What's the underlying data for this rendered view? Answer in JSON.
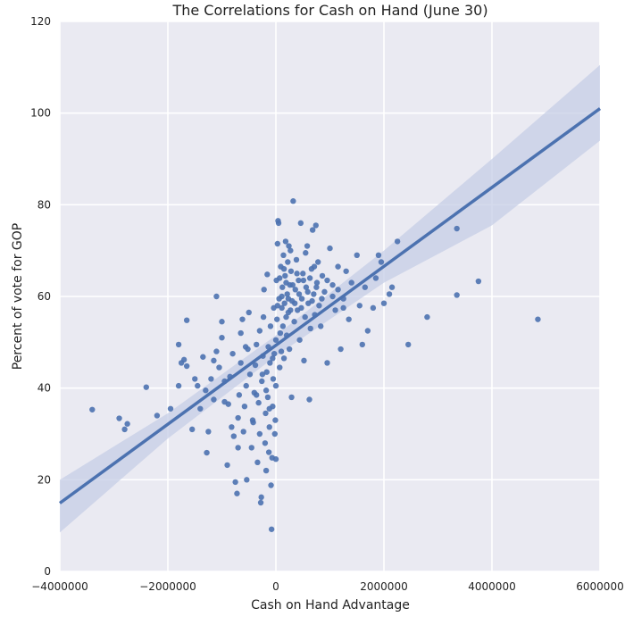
{
  "chart_data": {
    "type": "scatter",
    "title": "The Correlations for Cash on Hand (June 30)",
    "xlabel": "Cash on Hand Advantage",
    "ylabel": "Percent of vote for GOP",
    "xlim": [
      -4000000,
      6000000
    ],
    "ylim": [
      0,
      120
    ],
    "x_ticks": [
      -4000000,
      -2000000,
      0,
      2000000,
      4000000,
      6000000
    ],
    "x_tick_labels": [
      "−4000000",
      "−2000000",
      "0",
      "2000000",
      "4000000",
      "6000000"
    ],
    "y_ticks": [
      0,
      20,
      40,
      60,
      80,
      100,
      120
    ],
    "y_tick_labels": [
      "0",
      "20",
      "40",
      "60",
      "80",
      "100",
      "120"
    ],
    "grid": true,
    "colors": {
      "background": "#eaeaf2",
      "grid": "#ffffff",
      "points": "#4c72b0",
      "regression_line": "#4c72b0",
      "confidence_band": "#c5cde6"
    },
    "regression": {
      "slope_per_unit": 8.6e-06,
      "intercept": 49.3,
      "line": {
        "x": [
          -4000000,
          6000000
        ],
        "y": [
          14.9,
          101.0
        ]
      },
      "ci_upper": [
        {
          "x": -4000000,
          "y": 20.0
        },
        {
          "x": -2000000,
          "y": 34.5
        },
        {
          "x": 0,
          "y": 51.5
        },
        {
          "x": 2000000,
          "y": 70.0
        },
        {
          "x": 4000000,
          "y": 90.0
        },
        {
          "x": 6000000,
          "y": 110.5
        }
      ],
      "ci_lower": [
        {
          "x": -4000000,
          "y": 8.5
        },
        {
          "x": -2000000,
          "y": 29.0
        },
        {
          "x": 0,
          "y": 47.0
        },
        {
          "x": 2000000,
          "y": 63.0
        },
        {
          "x": 4000000,
          "y": 75.5
        },
        {
          "x": 6000000,
          "y": 94.0
        }
      ]
    },
    "points": [
      {
        "x": -3400000,
        "y": 35.3
      },
      {
        "x": -2900000,
        "y": 33.4
      },
      {
        "x": -2800000,
        "y": 31.0
      },
      {
        "x": -2750000,
        "y": 32.2
      },
      {
        "x": -2400000,
        "y": 40.2
      },
      {
        "x": -2200000,
        "y": 34.0
      },
      {
        "x": -1950000,
        "y": 35.5
      },
      {
        "x": -1800000,
        "y": 40.5
      },
      {
        "x": -1800000,
        "y": 49.5
      },
      {
        "x": -1750000,
        "y": 45.5
      },
      {
        "x": -1700000,
        "y": 46.2
      },
      {
        "x": -1650000,
        "y": 54.8
      },
      {
        "x": -1650000,
        "y": 44.8
      },
      {
        "x": -1550000,
        "y": 31.0
      },
      {
        "x": -1450000,
        "y": 40.5
      },
      {
        "x": -1400000,
        "y": 35.5
      },
      {
        "x": -1350000,
        "y": 46.8
      },
      {
        "x": -1300000,
        "y": 39.5
      },
      {
        "x": -1280000,
        "y": 25.9
      },
      {
        "x": -1250000,
        "y": 30.5
      },
      {
        "x": -1200000,
        "y": 42.0
      },
      {
        "x": -1150000,
        "y": 37.5
      },
      {
        "x": -1100000,
        "y": 60.0
      },
      {
        "x": -1100000,
        "y": 48.0
      },
      {
        "x": -1050000,
        "y": 44.5
      },
      {
        "x": -1000000,
        "y": 54.5
      },
      {
        "x": -1000000,
        "y": 51.0
      },
      {
        "x": -950000,
        "y": 41.5
      },
      {
        "x": -900000,
        "y": 23.2
      },
      {
        "x": -880000,
        "y": 36.5
      },
      {
        "x": -850000,
        "y": 42.5
      },
      {
        "x": -800000,
        "y": 47.5
      },
      {
        "x": -780000,
        "y": 29.5
      },
      {
        "x": -750000,
        "y": 19.5
      },
      {
        "x": -720000,
        "y": 17.0
      },
      {
        "x": -700000,
        "y": 33.5
      },
      {
        "x": -680000,
        "y": 38.5
      },
      {
        "x": -650000,
        "y": 45.5
      },
      {
        "x": -650000,
        "y": 52.0
      },
      {
        "x": -620000,
        "y": 55.0
      },
      {
        "x": -600000,
        "y": 30.5
      },
      {
        "x": -580000,
        "y": 36.0
      },
      {
        "x": -550000,
        "y": 40.5
      },
      {
        "x": -540000,
        "y": 20.0
      },
      {
        "x": -520000,
        "y": 48.5
      },
      {
        "x": -500000,
        "y": 56.5
      },
      {
        "x": -480000,
        "y": 43.0
      },
      {
        "x": -450000,
        "y": 27.0
      },
      {
        "x": -430000,
        "y": 33.0
      },
      {
        "x": -400000,
        "y": 39.0
      },
      {
        "x": -380000,
        "y": 45.0
      },
      {
        "x": -360000,
        "y": 49.5
      },
      {
        "x": -340000,
        "y": 23.8
      },
      {
        "x": -320000,
        "y": 36.8
      },
      {
        "x": -300000,
        "y": 52.5
      },
      {
        "x": -300000,
        "y": 30.0
      },
      {
        "x": -280000,
        "y": 15.0
      },
      {
        "x": -270000,
        "y": 16.2
      },
      {
        "x": -260000,
        "y": 41.5
      },
      {
        "x": -240000,
        "y": 47.0
      },
      {
        "x": -230000,
        "y": 55.5
      },
      {
        "x": -220000,
        "y": 61.5
      },
      {
        "x": -200000,
        "y": 28.0
      },
      {
        "x": -190000,
        "y": 34.5
      },
      {
        "x": -180000,
        "y": 22.0
      },
      {
        "x": -170000,
        "y": 43.5
      },
      {
        "x": -160000,
        "y": 64.8
      },
      {
        "x": -150000,
        "y": 38.0
      },
      {
        "x": -140000,
        "y": 49.0
      },
      {
        "x": -130000,
        "y": 26.0
      },
      {
        "x": -120000,
        "y": 31.5
      },
      {
        "x": -110000,
        "y": 45.5
      },
      {
        "x": -100000,
        "y": 53.5
      },
      {
        "x": -90000,
        "y": 18.8
      },
      {
        "x": -80000,
        "y": 9.2
      },
      {
        "x": -70000,
        "y": 24.8
      },
      {
        "x": -60000,
        "y": 36.0
      },
      {
        "x": -50000,
        "y": 42.0
      },
      {
        "x": -40000,
        "y": 57.5
      },
      {
        "x": -30000,
        "y": 47.5
      },
      {
        "x": -20000,
        "y": 30.0
      },
      {
        "x": -10000,
        "y": 33.0
      },
      {
        "x": 0,
        "y": 40.5
      },
      {
        "x": 0,
        "y": 50.5
      },
      {
        "x": 0,
        "y": 24.5
      },
      {
        "x": 10000,
        "y": 63.5
      },
      {
        "x": 20000,
        "y": 55.0
      },
      {
        "x": 30000,
        "y": 71.5
      },
      {
        "x": 40000,
        "y": 76.5
      },
      {
        "x": 50000,
        "y": 76.0
      },
      {
        "x": 60000,
        "y": 59.5
      },
      {
        "x": 70000,
        "y": 44.5
      },
      {
        "x": 80000,
        "y": 52.0
      },
      {
        "x": 90000,
        "y": 66.5
      },
      {
        "x": 100000,
        "y": 48.0
      },
      {
        "x": 110000,
        "y": 57.5
      },
      {
        "x": 120000,
        "y": 62.0
      },
      {
        "x": 130000,
        "y": 53.5
      },
      {
        "x": 140000,
        "y": 69.0
      },
      {
        "x": 150000,
        "y": 46.5
      },
      {
        "x": 160000,
        "y": 58.5
      },
      {
        "x": 170000,
        "y": 64.5
      },
      {
        "x": 180000,
        "y": 72.0
      },
      {
        "x": 190000,
        "y": 55.5
      },
      {
        "x": 200000,
        "y": 51.5
      },
      {
        "x": 210000,
        "y": 60.5
      },
      {
        "x": 220000,
        "y": 67.5
      },
      {
        "x": 230000,
        "y": 56.5
      },
      {
        "x": 240000,
        "y": 71.0
      },
      {
        "x": 250000,
        "y": 48.5
      },
      {
        "x": 260000,
        "y": 62.5
      },
      {
        "x": 270000,
        "y": 57.0
      },
      {
        "x": 280000,
        "y": 65.5
      },
      {
        "x": 290000,
        "y": 38.0
      },
      {
        "x": 300000,
        "y": 59.0
      },
      {
        "x": 320000,
        "y": 80.8
      },
      {
        "x": 340000,
        "y": 54.5
      },
      {
        "x": 360000,
        "y": 61.5
      },
      {
        "x": 380000,
        "y": 68.0
      },
      {
        "x": 400000,
        "y": 57.0
      },
      {
        "x": 420000,
        "y": 63.5
      },
      {
        "x": 440000,
        "y": 50.5
      },
      {
        "x": 460000,
        "y": 76.0
      },
      {
        "x": 480000,
        "y": 59.5
      },
      {
        "x": 500000,
        "y": 65.0
      },
      {
        "x": 520000,
        "y": 46.0
      },
      {
        "x": 540000,
        "y": 55.5
      },
      {
        "x": 560000,
        "y": 62.0
      },
      {
        "x": 580000,
        "y": 71.0
      },
      {
        "x": 600000,
        "y": 58.5
      },
      {
        "x": 620000,
        "y": 37.5
      },
      {
        "x": 640000,
        "y": 53.0
      },
      {
        "x": 660000,
        "y": 66.0
      },
      {
        "x": 680000,
        "y": 74.5
      },
      {
        "x": 700000,
        "y": 60.5
      },
      {
        "x": 720000,
        "y": 56.0
      },
      {
        "x": 740000,
        "y": 75.5
      },
      {
        "x": 760000,
        "y": 63.0
      },
      {
        "x": 780000,
        "y": 67.5
      },
      {
        "x": 800000,
        "y": 58.0
      },
      {
        "x": 830000,
        "y": 53.5
      },
      {
        "x": 860000,
        "y": 64.5
      },
      {
        "x": 900000,
        "y": 61.0
      },
      {
        "x": 950000,
        "y": 45.5
      },
      {
        "x": 1000000,
        "y": 70.5
      },
      {
        "x": 1050000,
        "y": 62.5
      },
      {
        "x": 1100000,
        "y": 57.0
      },
      {
        "x": 1150000,
        "y": 66.5
      },
      {
        "x": 1200000,
        "y": 48.5
      },
      {
        "x": 1250000,
        "y": 59.5
      },
      {
        "x": 1300000,
        "y": 65.5
      },
      {
        "x": 1350000,
        "y": 55.0
      },
      {
        "x": 1400000,
        "y": 63.0
      },
      {
        "x": 1500000,
        "y": 69.0
      },
      {
        "x": 1550000,
        "y": 58.0
      },
      {
        "x": 1600000,
        "y": 49.5
      },
      {
        "x": 1650000,
        "y": 62.0
      },
      {
        "x": 1700000,
        "y": 52.5
      },
      {
        "x": 1800000,
        "y": 57.5
      },
      {
        "x": 1850000,
        "y": 64.0
      },
      {
        "x": 1900000,
        "y": 69.0
      },
      {
        "x": 1950000,
        "y": 67.5
      },
      {
        "x": 2000000,
        "y": 58.5
      },
      {
        "x": 2100000,
        "y": 60.5
      },
      {
        "x": 2150000,
        "y": 62.0
      },
      {
        "x": 2250000,
        "y": 72.0
      },
      {
        "x": 2450000,
        "y": 49.5
      },
      {
        "x": 2800000,
        "y": 55.5
      },
      {
        "x": 3350000,
        "y": 74.8
      },
      {
        "x": 3350000,
        "y": 60.3
      },
      {
        "x": 3750000,
        "y": 63.3
      },
      {
        "x": 4850000,
        "y": 55.0
      },
      {
        "x": -1500000,
        "y": 42.0
      },
      {
        "x": -1150000,
        "y": 46.0
      },
      {
        "x": -950000,
        "y": 37.0
      },
      {
        "x": -820000,
        "y": 31.5
      },
      {
        "x": -700000,
        "y": 27.0
      },
      {
        "x": -560000,
        "y": 49.0
      },
      {
        "x": -420000,
        "y": 32.5
      },
      {
        "x": -360000,
        "y": 38.5
      },
      {
        "x": -250000,
        "y": 43.0
      },
      {
        "x": -180000,
        "y": 39.5
      },
      {
        "x": -120000,
        "y": 35.5
      },
      {
        "x": -60000,
        "y": 46.5
      },
      {
        "x": 30000,
        "y": 58.0
      },
      {
        "x": 70000,
        "y": 64.0
      },
      {
        "x": 110000,
        "y": 60.0
      },
      {
        "x": 150000,
        "y": 66.0
      },
      {
        "x": 190000,
        "y": 63.0
      },
      {
        "x": 230000,
        "y": 59.5
      },
      {
        "x": 270000,
        "y": 70.0
      },
      {
        "x": 310000,
        "y": 62.5
      },
      {
        "x": 350000,
        "y": 58.5
      },
      {
        "x": 390000,
        "y": 65.0
      },
      {
        "x": 430000,
        "y": 60.5
      },
      {
        "x": 470000,
        "y": 57.5
      },
      {
        "x": 510000,
        "y": 63.5
      },
      {
        "x": 550000,
        "y": 69.5
      },
      {
        "x": 590000,
        "y": 61.0
      },
      {
        "x": 630000,
        "y": 64.0
      },
      {
        "x": 670000,
        "y": 59.0
      },
      {
        "x": 710000,
        "y": 66.5
      },
      {
        "x": 750000,
        "y": 62.0
      },
      {
        "x": 850000,
        "y": 59.5
      },
      {
        "x": 950000,
        "y": 63.5
      },
      {
        "x": 1050000,
        "y": 60.0
      },
      {
        "x": 1150000,
        "y": 61.5
      },
      {
        "x": 1250000,
        "y": 57.5
      }
    ]
  }
}
